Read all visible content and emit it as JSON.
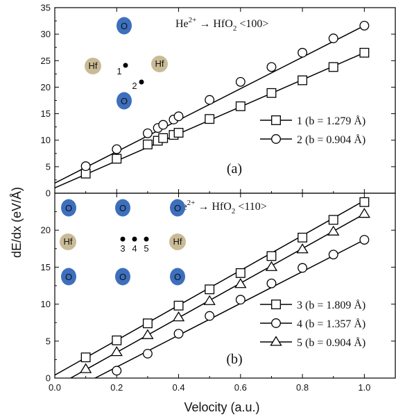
{
  "figure": {
    "ylabel": "dE/dx (eV/Å)",
    "xlabel": "Velocity (a.u.)"
  },
  "chart_data": [
    {
      "type": "line",
      "panel": "(a)",
      "title": "He²⁺ → HfO₂ <100>",
      "title_parts": {
        "ion": "He",
        "charge": "2+",
        "arrow": "→",
        "target": "HfO",
        "sub": "2",
        "dir": "<100>"
      },
      "xlim": [
        0,
        1.1
      ],
      "ylim": [
        0,
        35
      ],
      "xticks": [
        "0.0",
        "0.2",
        "0.4",
        "0.6",
        "0.8",
        "1.0"
      ],
      "yticks": [
        "0",
        "5",
        "10",
        "15",
        "20",
        "25",
        "30",
        "35"
      ],
      "show_xtick_labels": false,
      "legend_position": "right-middle",
      "series": [
        {
          "name": "1 (b = 1.279 Å)",
          "marker": "square",
          "x": [
            0.1,
            0.2,
            0.3,
            0.333,
            0.35,
            0.384,
            0.4,
            0.5,
            0.6,
            0.7,
            0.8,
            0.9,
            1.0
          ],
          "y": [
            3.7,
            6.5,
            9.2,
            9.9,
            10.4,
            11.0,
            11.4,
            14.0,
            16.4,
            18.9,
            21.3,
            23.8,
            26.5
          ],
          "fit": [
            1.0,
            25.5
          ]
        },
        {
          "name": "2 (b = 0.904 Å)",
          "marker": "circle",
          "x": [
            0.1,
            0.2,
            0.3,
            0.333,
            0.35,
            0.384,
            0.4,
            0.5,
            0.6,
            0.7,
            0.8,
            0.9,
            1.0
          ],
          "y": [
            5.1,
            8.3,
            11.3,
            12.3,
            12.9,
            13.9,
            14.5,
            17.6,
            21.0,
            23.8,
            26.5,
            29.2,
            31.6
          ],
          "fit": [
            1.9,
            29.7
          ]
        }
      ],
      "schematic": {
        "labels": {
          "o": "O",
          "hf": "Hf",
          "p1": "1",
          "p2": "2"
        },
        "colors": {
          "o_fill": "#3d6fbd",
          "hf_fill": "#c9bb96"
        }
      }
    },
    {
      "type": "line",
      "panel": "(b)",
      "title": "He²⁺ → HfO₂ <110>",
      "title_parts": {
        "ion": "He",
        "charge": "2+",
        "arrow": "→",
        "target": "HfO",
        "sub": "2",
        "dir": "<110>"
      },
      "xlim": [
        0,
        1.1
      ],
      "ylim": [
        0,
        25
      ],
      "xticks": [
        "0.0",
        "0.2",
        "0.4",
        "0.6",
        "0.8",
        "1.0"
      ],
      "yticks": [
        "0",
        "5",
        "10",
        "15",
        "20"
      ],
      "show_xtick_labels": true,
      "legend_position": "right-bottom",
      "series": [
        {
          "name": "3 (b = 1.809 Å)",
          "marker": "square",
          "x": [
            0.1,
            0.2,
            0.3,
            0.4,
            0.5,
            0.6,
            0.7,
            0.8,
            0.9,
            1.0
          ],
          "y": [
            2.8,
            5.1,
            7.4,
            9.8,
            12.0,
            14.2,
            16.5,
            19.0,
            21.4,
            23.8
          ],
          "fit": [
            0.4,
            23.6
          ]
        },
        {
          "name": "4 (b = 1.357 Å)",
          "marker": "circle",
          "x": [
            0.2,
            0.3,
            0.4,
            0.5,
            0.6,
            0.7,
            0.8,
            0.9,
            1.0
          ],
          "y": [
            1.0,
            3.3,
            6.0,
            8.4,
            10.6,
            12.8,
            14.9,
            16.7,
            18.7
          ],
          "fit": [
            -2.8,
            21.5
          ]
        },
        {
          "name": "5 (b = 0.904 Å)",
          "marker": "triangle",
          "x": [
            0.1,
            0.2,
            0.3,
            0.4,
            0.5,
            0.6,
            0.7,
            0.8,
            0.9,
            1.0
          ],
          "y": [
            1.2,
            3.5,
            5.8,
            8.2,
            10.4,
            12.7,
            15.0,
            17.4,
            19.8,
            22.2
          ],
          "fit": [
            -1.2,
            23.4
          ]
        }
      ],
      "schematic": {
        "labels": {
          "o": "O",
          "hf": "Hf",
          "p3": "3",
          "p4": "4",
          "p5": "5"
        },
        "colors": {
          "o_fill": "#3d6fbd",
          "hf_fill": "#c9bb96"
        }
      }
    }
  ]
}
